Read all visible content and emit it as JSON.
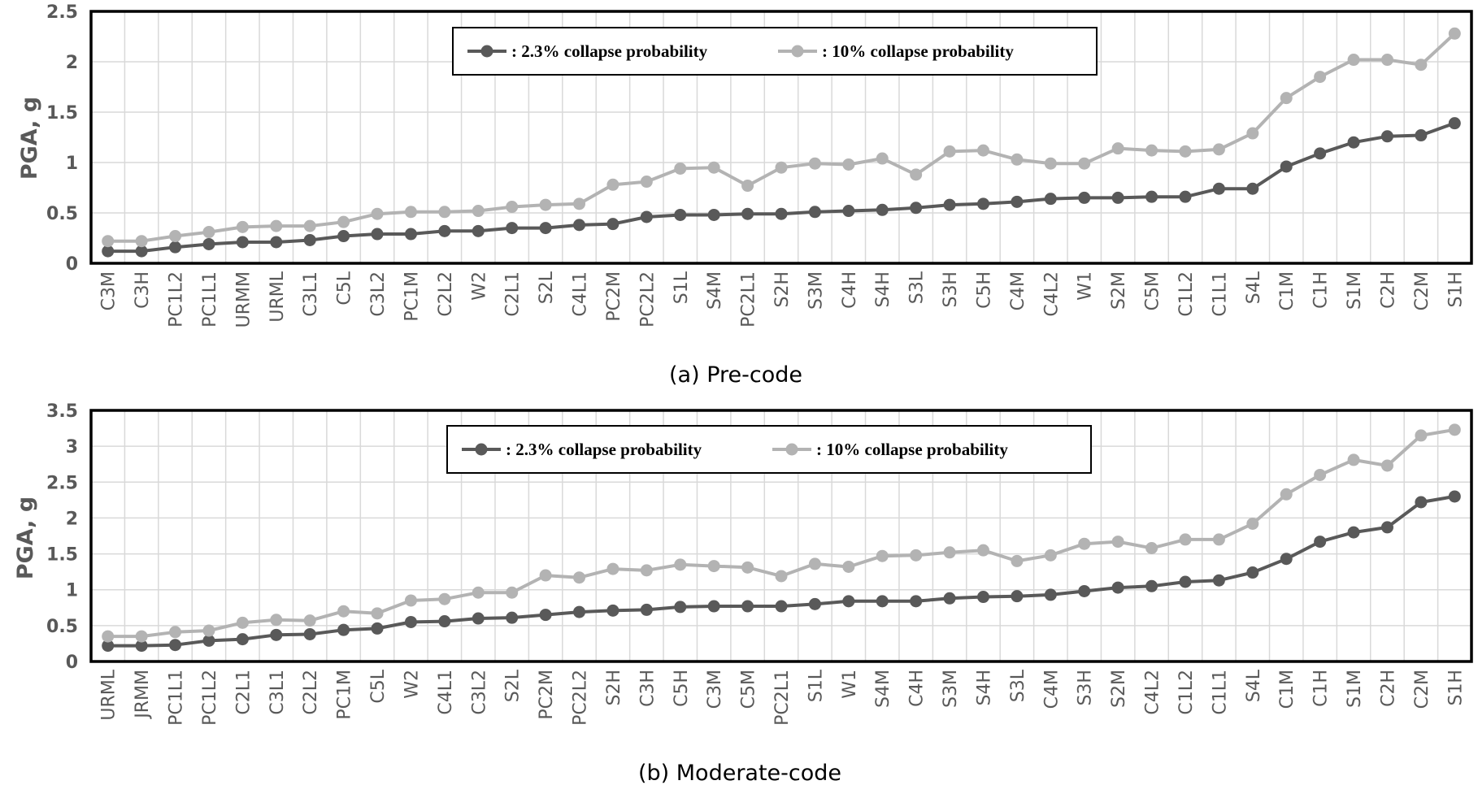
{
  "colors": {
    "series1": "#595959",
    "series2": "#b3b3b3",
    "grid": "#d9d9d9",
    "frame": "#000000",
    "tick_text": "#595959"
  },
  "chart_data": [
    {
      "type": "line",
      "caption": "(a) Pre-code",
      "ylabel": "PGA, g",
      "xlabel": "",
      "ylim": [
        0,
        2.5
      ],
      "yticks": [
        "0",
        "0.5",
        "1",
        "1.5",
        "2",
        "2.5"
      ],
      "grid": true,
      "legend_position": "top-center",
      "categories": [
        "C3M",
        "C3H",
        "PC1L2",
        "PC1L1",
        "URMM",
        "URML",
        "C3L1",
        "C5L",
        "C3L2",
        "PC1M",
        "C2L2",
        "W2",
        "C2L1",
        "S2L",
        "C4L1",
        "PC2M",
        "PC2L2",
        "S1L",
        "S4M",
        "PC2L1",
        "S2H",
        "S3M",
        "C4H",
        "S4H",
        "S3L",
        "S3H",
        "C5H",
        "C4M",
        "C4L2",
        "W1",
        "S2M",
        "C5M",
        "C1L2",
        "C1L1",
        "S4L",
        "C1M",
        "C1H",
        "S1M",
        "C2H",
        "C2M",
        "S1H"
      ],
      "series": [
        {
          "name": ": 2.3% collapse probability",
          "values": [
            0.12,
            0.12,
            0.16,
            0.19,
            0.21,
            0.21,
            0.23,
            0.27,
            0.29,
            0.29,
            0.32,
            0.32,
            0.35,
            0.35,
            0.38,
            0.39,
            0.46,
            0.48,
            0.48,
            0.49,
            0.49,
            0.51,
            0.52,
            0.53,
            0.55,
            0.58,
            0.59,
            0.61,
            0.64,
            0.65,
            0.65,
            0.66,
            0.66,
            0.74,
            0.74,
            0.96,
            1.09,
            1.2,
            1.26,
            1.27,
            1.39
          ]
        },
        {
          "name": ": 10% collapse probability",
          "values": [
            0.22,
            0.22,
            0.27,
            0.31,
            0.36,
            0.37,
            0.37,
            0.41,
            0.49,
            0.51,
            0.51,
            0.52,
            0.56,
            0.58,
            0.59,
            0.78,
            0.81,
            0.94,
            0.95,
            0.77,
            0.95,
            0.99,
            0.98,
            1.04,
            0.88,
            1.11,
            1.12,
            1.03,
            0.99,
            0.99,
            1.14,
            1.12,
            1.11,
            1.13,
            1.29,
            1.64,
            1.85,
            2.02,
            2.02,
            1.97,
            2.28
          ]
        }
      ]
    },
    {
      "type": "line",
      "caption": "(b) Moderate-code",
      "ylabel": "PGA, g",
      "xlabel": "",
      "ylim": [
        0,
        3.5
      ],
      "yticks": [
        "0",
        "0.5",
        "1",
        "1.5",
        "2",
        "2.5",
        "3",
        "3.5"
      ],
      "grid": true,
      "legend_position": "top-center",
      "categories": [
        "URML",
        "JRMM",
        "PC1L1",
        "PC1L2",
        "C2L1",
        "C3L1",
        "C2L2",
        "PC1M",
        "C5L",
        "W2",
        "C4L1",
        "C3L2",
        "S2L",
        "PC2M",
        "PC2L2",
        "S2H",
        "C3H",
        "C5H",
        "C3M",
        "C5M",
        "PC2L1",
        "S1L",
        "W1",
        "S4M",
        "C4H",
        "S3M",
        "S4H",
        "S3L",
        "C4M",
        "S3H",
        "S2M",
        "C4L2",
        "C1L2",
        "C1L1",
        "S4L",
        "C1M",
        "C1H",
        "S1M",
        "C2H",
        "C2M",
        "S1H"
      ],
      "series": [
        {
          "name": ": 2.3% collapse probability",
          "values": [
            0.22,
            0.22,
            0.23,
            0.29,
            0.31,
            0.37,
            0.38,
            0.44,
            0.46,
            0.55,
            0.56,
            0.6,
            0.61,
            0.65,
            0.69,
            0.71,
            0.72,
            0.76,
            0.77,
            0.77,
            0.77,
            0.8,
            0.84,
            0.84,
            0.84,
            0.88,
            0.9,
            0.91,
            0.93,
            0.98,
            1.03,
            1.05,
            1.11,
            1.13,
            1.24,
            1.43,
            1.67,
            1.8,
            1.87,
            2.22,
            2.3
          ]
        },
        {
          "name": ": 10% collapse probability",
          "values": [
            0.35,
            0.35,
            0.41,
            0.43,
            0.54,
            0.58,
            0.57,
            0.7,
            0.67,
            0.85,
            0.87,
            0.96,
            0.96,
            1.2,
            1.17,
            1.29,
            1.27,
            1.35,
            1.33,
            1.31,
            1.19,
            1.36,
            1.32,
            1.47,
            1.48,
            1.52,
            1.55,
            1.4,
            1.48,
            1.64,
            1.67,
            1.58,
            1.7,
            1.7,
            1.92,
            2.33,
            2.6,
            2.81,
            2.73,
            3.15,
            3.23
          ]
        }
      ]
    }
  ]
}
